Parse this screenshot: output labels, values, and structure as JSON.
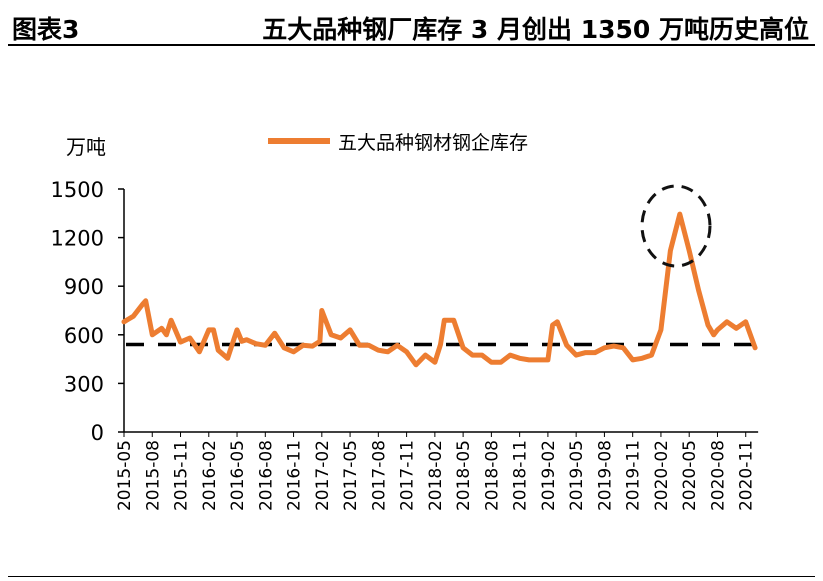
{
  "header": {
    "figure_no": "图表3",
    "title": "五大品种钢厂库存 3 月创出 1350 万吨历史高位"
  },
  "chart_data": {
    "type": "line",
    "title": "五大品种钢厂库存 3 月创出 1350 万吨历史高位",
    "ylabel": "万吨",
    "xlabel": "",
    "ylim": [
      0,
      1500
    ],
    "yticks": [
      0,
      300,
      600,
      900,
      1200,
      1500
    ],
    "ytick_labels": [
      "0",
      "300",
      "600",
      "900",
      "1200",
      "1500"
    ],
    "xtick_labels": [
      "2015-05",
      "2015-08",
      "2015-11",
      "2016-02",
      "2016-05",
      "2016-08",
      "2016-11",
      "2017-02",
      "2017-05",
      "2017-08",
      "2017-11",
      "2018-02",
      "2018-05",
      "2018-08",
      "2018-11",
      "2019-02",
      "2019-05",
      "2019-08",
      "2019-11",
      "2020-02",
      "2020-05",
      "2020-08",
      "2020-11"
    ],
    "x_unit": "months since 2015-05",
    "legend": {
      "position": "top",
      "entries": [
        "五大品种钢材钢企库存"
      ]
    },
    "reference_line": {
      "value": 540,
      "style": "dashed"
    },
    "annotation": "dashed circle around 2020-03 peak",
    "series": [
      {
        "name": "五大品种钢材钢企库存",
        "color": "#ED7D31",
        "x": [
          0,
          1,
          2,
          2.3,
          3,
          4,
          4.5,
          5,
          6,
          7,
          8,
          9,
          9.5,
          10,
          11,
          12,
          12.5,
          13,
          14,
          15,
          16,
          17,
          18,
          19,
          20,
          20.8,
          21,
          22,
          23,
          24,
          25,
          26,
          27,
          28,
          29,
          30,
          31,
          32,
          33,
          33.6,
          34,
          35,
          36,
          37,
          38,
          39,
          40,
          41,
          42,
          43,
          44,
          45,
          45.5,
          46,
          47,
          48,
          49,
          50,
          51,
          52,
          53,
          54,
          55,
          56,
          57,
          58,
          59,
          60,
          61,
          62,
          62.6,
          63,
          64,
          65,
          66,
          67
        ],
        "y": [
          680,
          715,
          790,
          810,
          600,
          640,
          600,
          690,
          555,
          580,
          495,
          630,
          630,
          505,
          455,
          630,
          560,
          570,
          545,
          535,
          610,
          520,
          495,
          535,
          530,
          560,
          750,
          600,
          580,
          630,
          535,
          535,
          505,
          495,
          535,
          495,
          415,
          475,
          430,
          540,
          690,
          690,
          520,
          475,
          475,
          430,
          430,
          475,
          455,
          445,
          445,
          445,
          660,
          680,
          535,
          475,
          490,
          490,
          520,
          530,
          520,
          445,
          455,
          475,
          630,
          1120,
          1345,
          1120,
          875,
          660,
          600,
          630,
          680,
          640,
          680,
          520
        ]
      }
    ]
  }
}
